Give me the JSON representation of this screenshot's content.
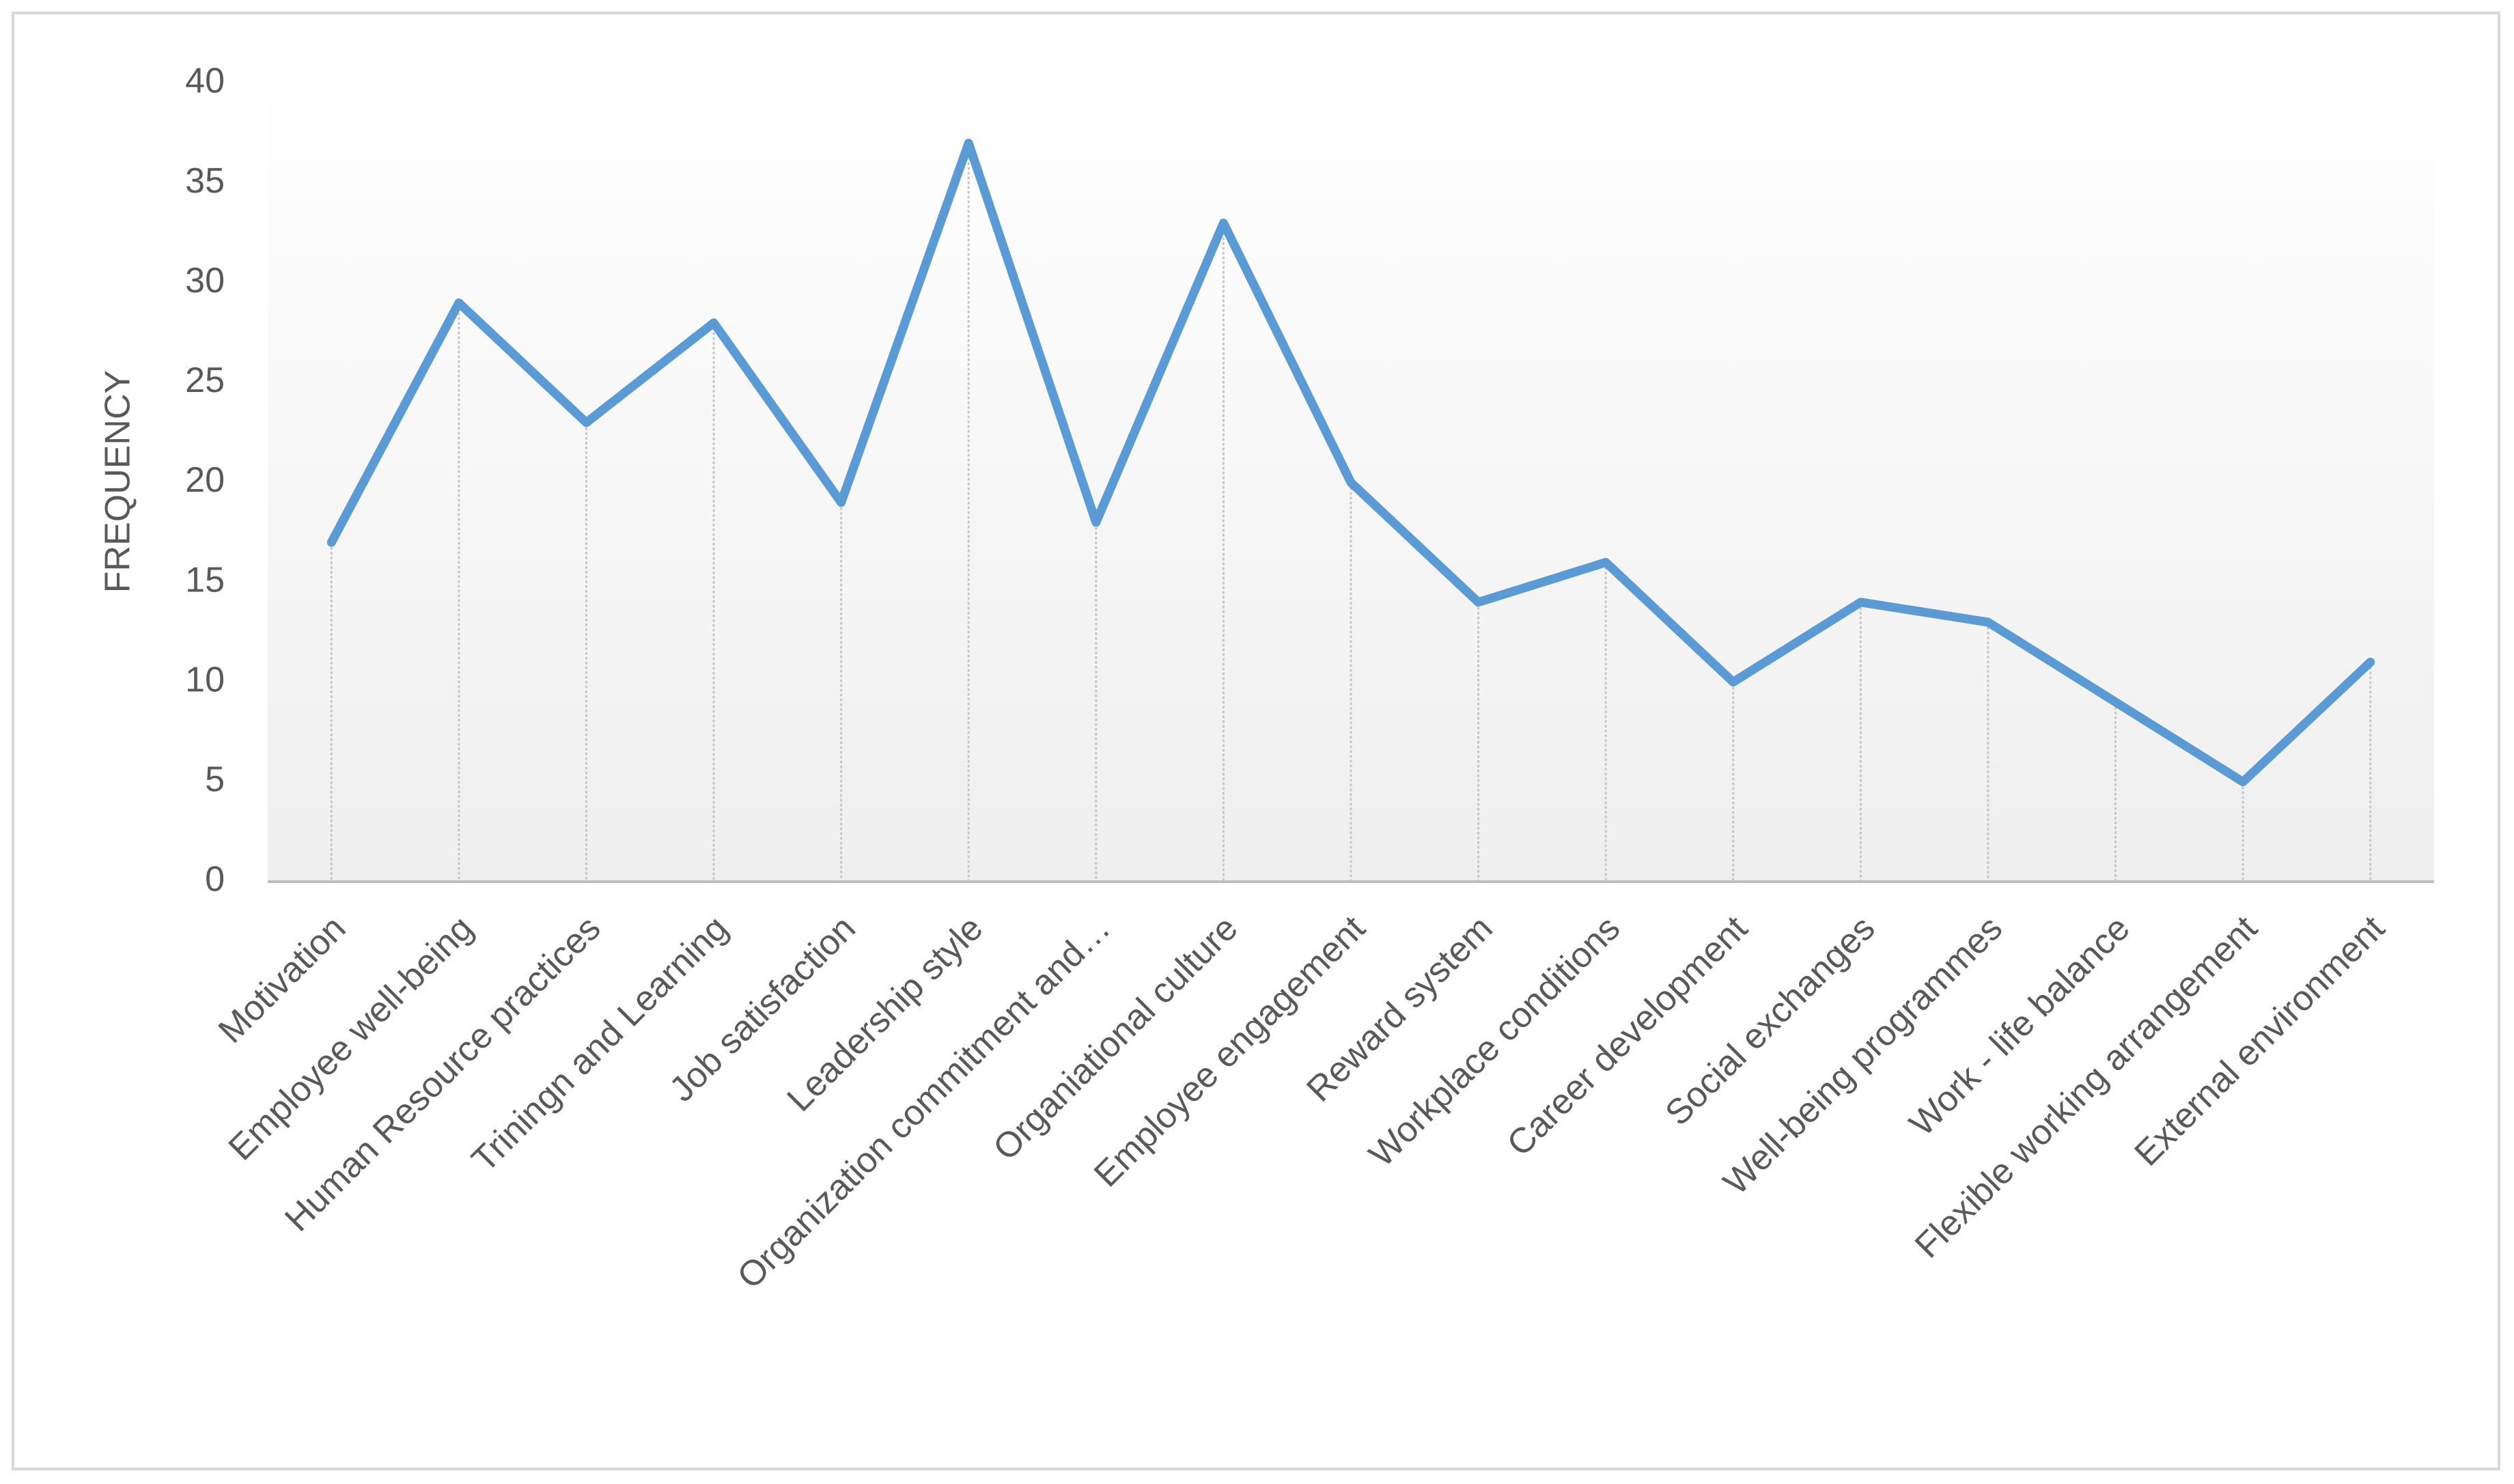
{
  "chart_data": {
    "type": "line",
    "y_label": "FREQUENCY",
    "categories": [
      "Motivation",
      "Employee well-being",
      "Human Resource practices",
      "Triningn and Learning",
      "Job satisfaction",
      "Leadership style",
      "Organization commitment and…",
      "Organiational culture",
      "Employee engagement",
      "Reward system",
      "Workplace conditions",
      "Career development",
      "Social exchanges",
      "Well-being programmes",
      "Work - life balance",
      "Flexible working arrangement",
      "External environment"
    ],
    "values": [
      17,
      29,
      23,
      28,
      19,
      37,
      18,
      33,
      20,
      14,
      16,
      10,
      14,
      13,
      9,
      5,
      11
    ],
    "color": "#5b9bd5",
    "ylim": [
      0,
      40
    ],
    "yticks": [
      0,
      5,
      10,
      15,
      20,
      25,
      30,
      35,
      40
    ],
    "grid": false,
    "drop_lines": true
  }
}
